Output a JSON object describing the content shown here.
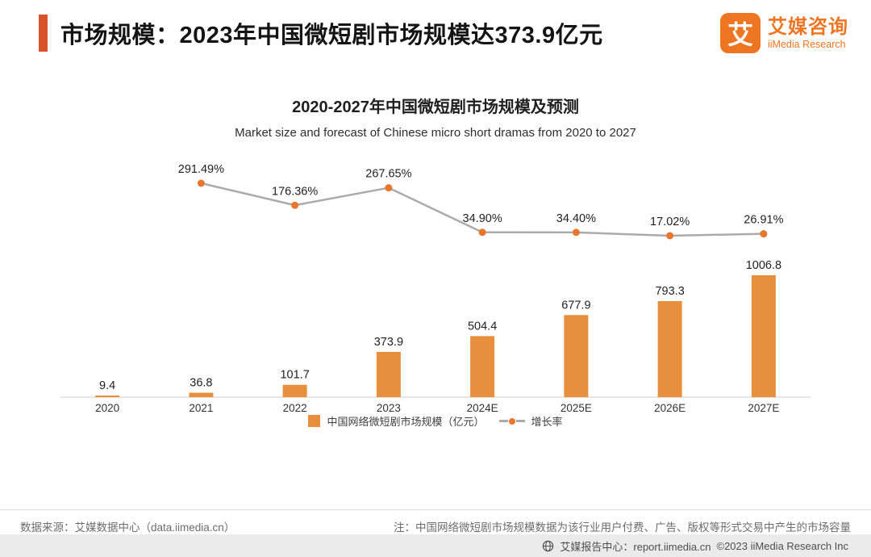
{
  "header": {
    "title": "市场规模：2023年中国微短剧市场规模达373.9亿元",
    "logo": {
      "mark": "艾",
      "name_cn": "艾媒咨询",
      "name_en": "iiMedia Research"
    }
  },
  "chart": {
    "title": "2020-2027年中国微短剧市场规模及预测",
    "subtitle": "Market size and forecast of Chinese micro short dramas from 2020 to 2027"
  },
  "chart_data": {
    "type": "bar",
    "categories": [
      "2020",
      "2021",
      "2022",
      "2023",
      "2024E",
      "2025E",
      "2026E",
      "2027E"
    ],
    "series": [
      {
        "name": "中国网络微短剧市场规模（亿元）",
        "type": "bar",
        "color": "#e78f3c",
        "values": [
          9.4,
          36.8,
          101.7,
          373.9,
          504.4,
          677.9,
          793.3,
          1006.8
        ]
      },
      {
        "name": "增长率",
        "type": "line",
        "color": "#ababab",
        "marker_color": "#e8762c",
        "values": [
          null,
          291.49,
          176.36,
          267.65,
          34.9,
          34.4,
          17.02,
          26.91
        ],
        "labels": [
          "",
          "291.49%",
          "176.36%",
          "267.65%",
          "34.90%",
          "34.40%",
          "17.02%",
          "26.91%"
        ]
      }
    ],
    "title": "2020-2027年中国微短剧市场规模及预测",
    "xlabel": "",
    "ylabel": "",
    "legend_position": "bottom",
    "grid": false,
    "y_axis_visible": false
  },
  "footer": {
    "source": "数据来源：艾媒数据中心（data.iimedia.cn）",
    "note": "注：中国网络微短剧市场规模数据为该行业用户付费、广告、版权等形式交易中产生的市场容量",
    "report_center": "艾媒报告中心：report.iimedia.cn",
    "copyright": "©2023  iiMedia Research Inc"
  }
}
